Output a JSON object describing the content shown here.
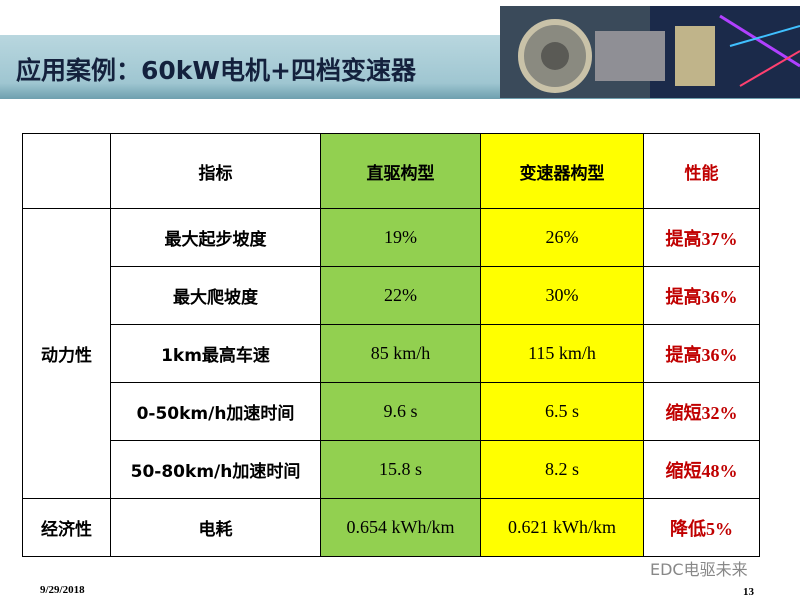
{
  "header": {
    "title": "应用案例：60kW电机+四档变速器"
  },
  "table": {
    "columns": [
      "指标",
      "直驱构型",
      "变速器构型",
      "性能"
    ],
    "groups": [
      {
        "label": "动力性",
        "rows": [
          [
            "最大起步坡度",
            "19%",
            "26%",
            "提高37%"
          ],
          [
            "最大爬坡度",
            "22%",
            "30%",
            "提高36%"
          ],
          [
            "1km最高车速",
            "85 km/h",
            "115 km/h",
            "提高36%"
          ],
          [
            "0-50km/h加速时间",
            "9.6 s",
            "6.5 s",
            "缩短32%"
          ],
          [
            "50-80km/h加速时间",
            "15.8 s",
            "8.2 s",
            "缩短48%"
          ]
        ]
      },
      {
        "label": "经济性",
        "rows": [
          [
            "电耗",
            "0.654 kWh/km",
            "0.621 kWh/km",
            "降低5%"
          ]
        ]
      }
    ]
  },
  "footer": {
    "date": "9/29/2018",
    "page": "13",
    "watermark": "EDC电驱未来"
  }
}
